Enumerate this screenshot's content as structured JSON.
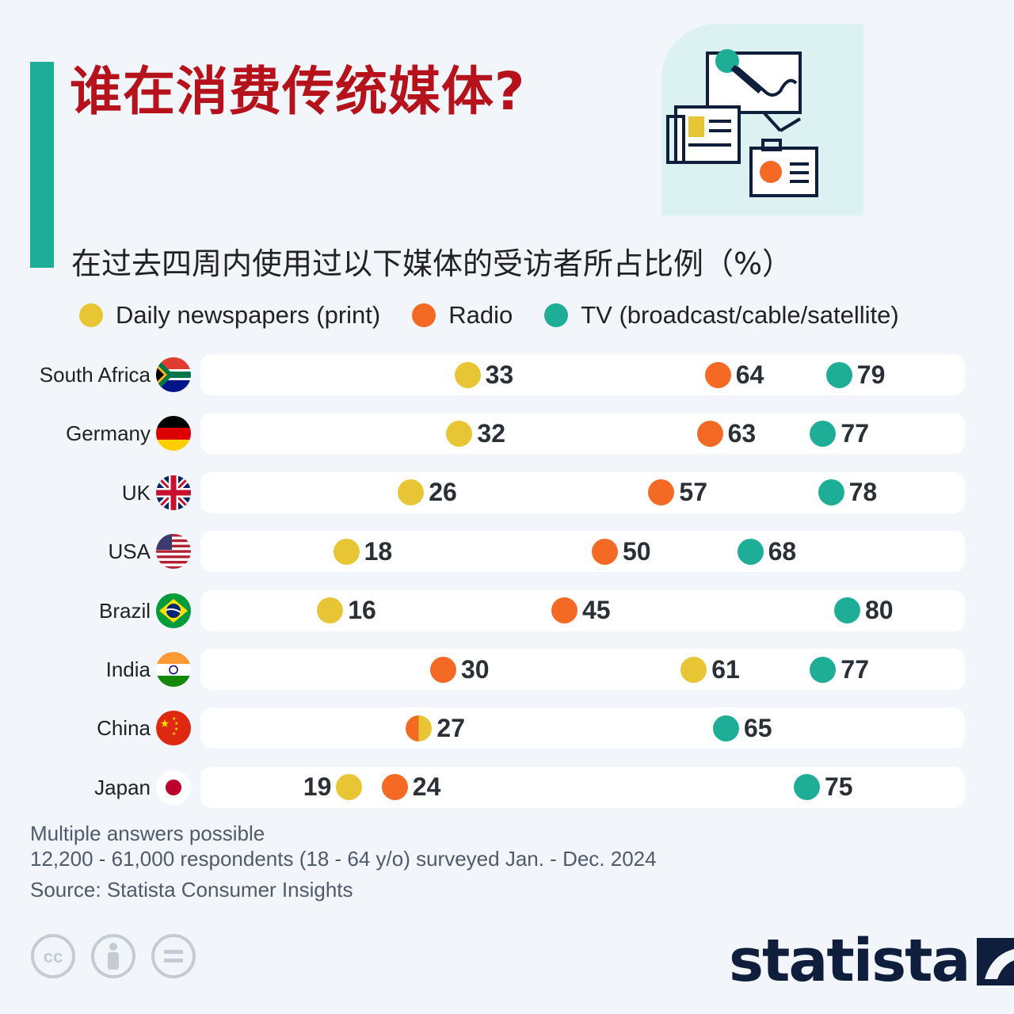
{
  "title": "谁在消费传统媒体?",
  "subtitle": "在过去四周内使用过以下媒体的受访者所占比例（%）",
  "colors": {
    "newspapers": "#e8c535",
    "radio": "#f46a25",
    "tv": "#1eae98",
    "accent": "#1eae98",
    "title": "#b5121b"
  },
  "chart_data": {
    "type": "scatter",
    "title": "谁在消费传统媒体?",
    "subtitle": "在过去四周内使用过以下媒体的受访者所占比例（%）",
    "xlim": [
      0,
      100
    ],
    "grid": false,
    "legend_placement": "top",
    "categories": [
      "South Africa",
      "Germany",
      "UK",
      "USA",
      "Brazil",
      "India",
      "China",
      "Japan"
    ],
    "series": [
      {
        "name": "Daily newspapers (print)",
        "key": "newspapers",
        "values": [
          33,
          32,
          26,
          18,
          16,
          61,
          27,
          19
        ]
      },
      {
        "name": "Radio",
        "key": "radio",
        "values": [
          64,
          63,
          57,
          50,
          45,
          30,
          27,
          24
        ]
      },
      {
        "name": "TV (broadcast/cable/satellite)",
        "key": "tv",
        "values": [
          79,
          77,
          78,
          68,
          80,
          77,
          65,
          75
        ]
      }
    ]
  },
  "footer": {
    "note": "Multiple answers possible",
    "respondents": "12,200 - 61,000 respondents (18 - 64 y/o) surveyed Jan. - Dec. 2024",
    "source": "Source: Statista Consumer Insights",
    "brand": "statista",
    "license_icons": [
      "cc-icon",
      "attribution-icon",
      "no-derivatives-icon"
    ]
  }
}
